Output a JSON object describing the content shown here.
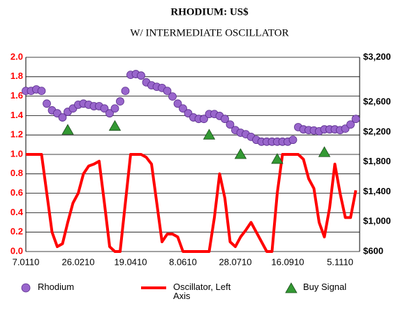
{
  "chart_data": {
    "type": "line",
    "title": "RHODIUM: US$",
    "subtitle": "W/ INTERMEDIATE OSCILLATOR",
    "categories": [
      "7.0110",
      null,
      null,
      null,
      null,
      null,
      null,
      null,
      null,
      null,
      "26.0210",
      null,
      null,
      null,
      null,
      null,
      null,
      null,
      null,
      null,
      "19.0410",
      null,
      null,
      null,
      null,
      null,
      null,
      null,
      null,
      null,
      "8.0610",
      null,
      null,
      null,
      null,
      null,
      null,
      null,
      null,
      null,
      "28.0710",
      null,
      null,
      null,
      null,
      null,
      null,
      null,
      null,
      null,
      "16.0910",
      null,
      null,
      null,
      null,
      null,
      null,
      null,
      null,
      null,
      "5.1110",
      null,
      null,
      null
    ],
    "ylim": [
      0,
      2
    ],
    "yticks": [
      {
        "value": 0,
        "label": "0.0"
      },
      0.2,
      0.4,
      0.6,
      0.8,
      {
        "value": 1,
        "label": "1.0"
      },
      1.2,
      1.4,
      1.6,
      1.8,
      {
        "value": 2,
        "label": "2.0"
      }
    ],
    "y2lim": [
      600,
      3200
    ],
    "y2ticks": [
      {
        "value": 600,
        "label": "$600"
      },
      {
        "value": 1000,
        "label": "$1,000"
      },
      {
        "value": 1400,
        "label": "$1,400"
      },
      {
        "value": 1800,
        "label": "$1,800"
      },
      {
        "value": 2200,
        "label": "$2,200"
      },
      {
        "value": 2600,
        "label": "$2,600"
      },
      {
        "value": 3200,
        "label": "$3,200"
      }
    ],
    "grid": true,
    "legend": "bottom",
    "series": [
      {
        "name": "Rhodium",
        "type": "scatter",
        "axis": "y2",
        "color": "#9966cc",
        "values": [
          2750,
          2750,
          2770,
          2750,
          2580,
          2490,
          2450,
          2395,
          2470,
          2515,
          2565,
          2580,
          2565,
          2545,
          2545,
          2515,
          2450,
          2515,
          2610,
          2750,
          2965,
          2975,
          2955,
          2865,
          2825,
          2805,
          2790,
          2750,
          2675,
          2580,
          2515,
          2450,
          2395,
          2375,
          2375,
          2440,
          2440,
          2415,
          2375,
          2300,
          2225,
          2190,
          2170,
          2135,
          2095,
          2070,
          2070,
          2070,
          2070,
          2070,
          2070,
          2095,
          2265,
          2235,
          2225,
          2220,
          2210,
          2235,
          2235,
          2235,
          2225,
          2245,
          2300,
          2375
        ]
      },
      {
        "name": "Oscillator, Left Axis",
        "type": "line",
        "color": "#ff0000",
        "values": [
          1,
          1,
          1,
          1,
          0.6,
          0.2,
          0.05,
          0.08,
          0.3,
          0.5,
          0.6,
          0.8,
          0.88,
          0.9,
          0.93,
          0.5,
          0.05,
          0,
          0,
          0.5,
          1,
          1,
          1,
          0.97,
          0.9,
          0.5,
          0.1,
          0.18,
          0.18,
          0.15,
          0,
          0,
          0,
          0,
          0,
          0,
          0.35,
          0.8,
          0.55,
          0.1,
          0.05,
          0.15,
          0.22,
          0.3,
          0.2,
          0.1,
          0,
          0,
          0.6,
          1,
          1,
          1,
          1,
          0.95,
          0.75,
          0.65,
          0.3,
          0.15,
          0.45,
          0.9,
          0.6,
          0.35,
          0.35,
          0.63
        ]
      },
      {
        "name": "Buy Signal",
        "type": "marker",
        "color": "#339933",
        "values": [
          null,
          null,
          null,
          null,
          null,
          null,
          null,
          null,
          1.25,
          null,
          null,
          null,
          null,
          null,
          null,
          null,
          null,
          1.29,
          null,
          null,
          null,
          null,
          null,
          null,
          null,
          null,
          null,
          null,
          null,
          null,
          null,
          null,
          null,
          null,
          null,
          1.2,
          null,
          null,
          null,
          null,
          null,
          1.0,
          null,
          null,
          null,
          null,
          null,
          null,
          0.95,
          null,
          null,
          null,
          null,
          null,
          null,
          null,
          null,
          1.02,
          null,
          null,
          null,
          null,
          null,
          null
        ]
      }
    ]
  }
}
